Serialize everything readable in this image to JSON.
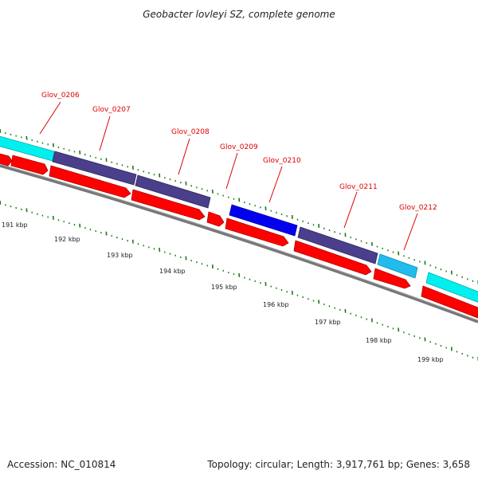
{
  "title": "Geobacter lovleyi SZ, complete genome",
  "footer": {
    "accession": "Accession: NC_010814",
    "topology": "Topology: circular; Length: 3,917,761 bp; Genes: 3,658"
  },
  "gene_labels": [
    "Glov_0206",
    "Glov_0207",
    "Glov_0208",
    "Glov_0209",
    "Glov_0210",
    "Glov_0211",
    "Glov_0212"
  ],
  "kbp_labels": [
    "191 kbp",
    "192 kbp",
    "193 kbp",
    "194 kbp",
    "195 kbp",
    "196 kbp",
    "197 kbp",
    "198 kbp",
    "199 kbp"
  ],
  "colors": {
    "cyan": "#00f0f0",
    "slate": "#4a3f8a",
    "blue": "#0000ee",
    "lightblue": "#22bbee",
    "red": "#ff0000",
    "darkred": "#b00000",
    "backbone": "#777777",
    "tick": "#1a7a1a",
    "label": "#dd0000"
  }
}
